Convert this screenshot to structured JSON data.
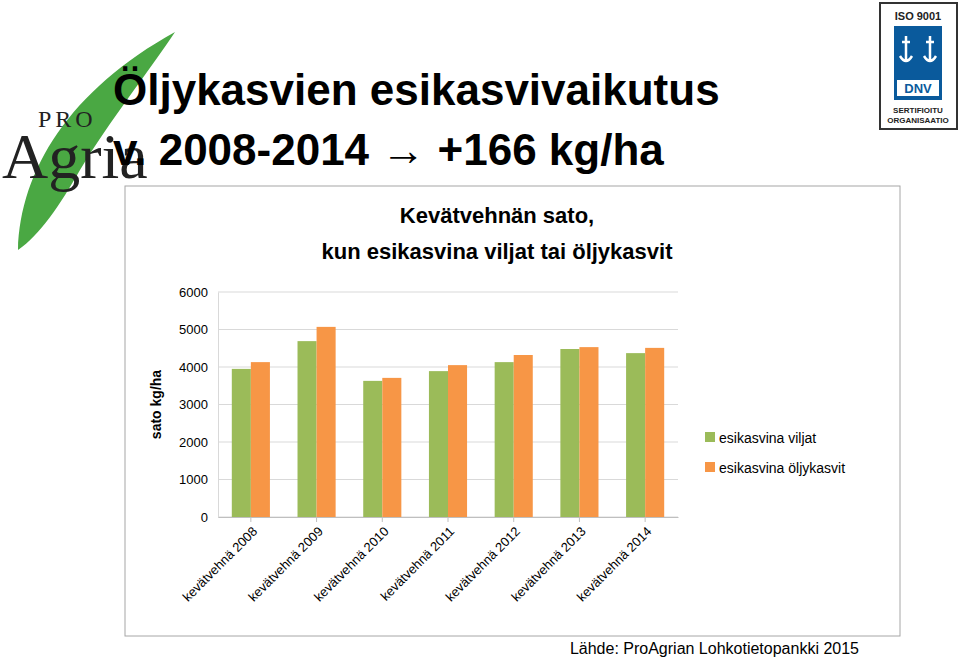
{
  "slide": {
    "title": [
      "Öljykasvien esikasvivaikutus",
      "v. 2008-2014 → +166 kg/ha"
    ],
    "source": "Lähde: ProAgrian Lohkotietopankki 2015",
    "logo_left": [
      "PRO",
      "Agria"
    ],
    "logo_right": [
      "ISO 9001",
      "DNV",
      "SERTIFIOITU",
      "ORGANISAATIO"
    ]
  },
  "chart_data": {
    "type": "bar",
    "title": [
      "Kevätvehnän sato,",
      "kun esikasvina viljat tai öljykasvit"
    ],
    "y_label": "sato kg/ha",
    "categories": [
      "kevätvehnä 2008",
      "kevätvehnä 2009",
      "kevätvehnä 2010",
      "kevätvehnä 2011",
      "kevätvehnä 2012",
      "kevätvehnä 2013",
      "kevätvehnä 2014"
    ],
    "series": [
      {
        "name": "esikasvina viljat",
        "color": "#9bbb59",
        "values": [
          3950,
          4690,
          3630,
          3890,
          4130,
          4480,
          4370
        ]
      },
      {
        "name": "esikasvina öljykasvit",
        "color": "#f79646",
        "values": [
          4130,
          5070,
          3710,
          4050,
          4320,
          4530,
          4510
        ]
      }
    ],
    "ylim": [
      0,
      6000
    ],
    "yticks": [
      0,
      1000,
      2000,
      3000,
      4000,
      5000,
      6000
    ],
    "grid": true,
    "legend": "right"
  }
}
